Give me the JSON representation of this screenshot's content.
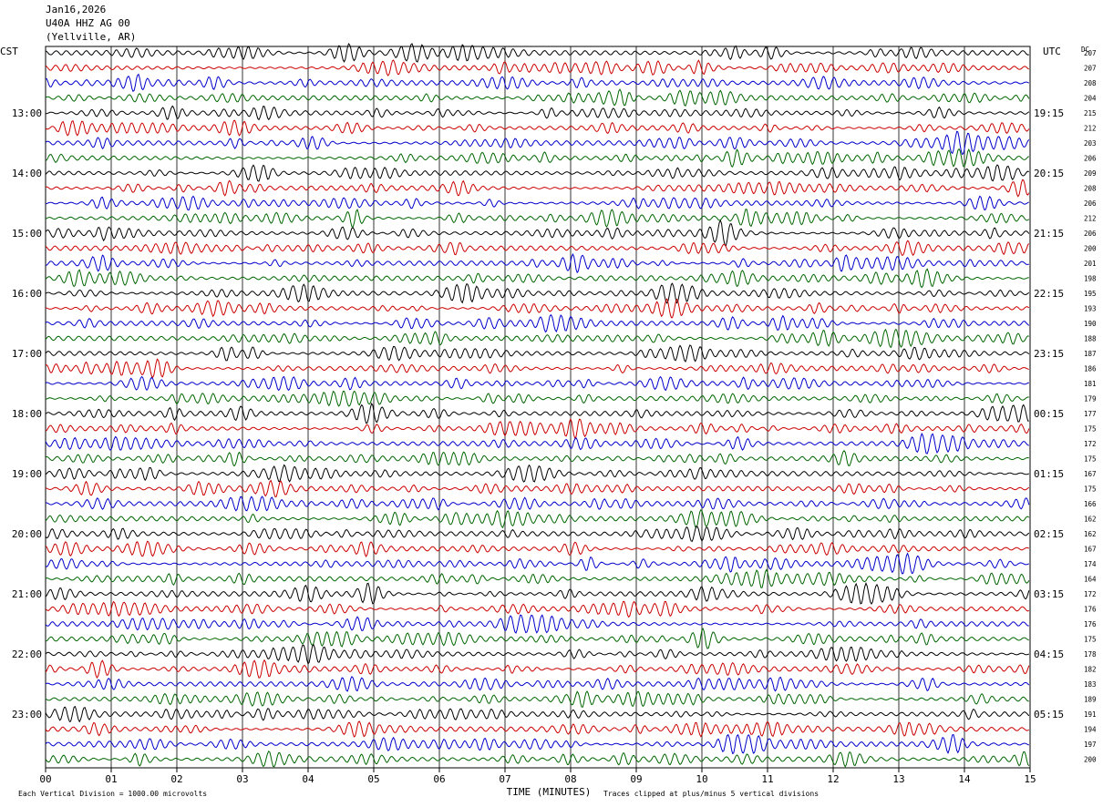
{
  "header": {
    "date": "Jan16,2026",
    "station": "U40A HHZ AG 00",
    "location": "(Yellville, AR)"
  },
  "left_timezone": "CST",
  "right_timezone": "UTC",
  "dc_label": "DC",
  "footer": {
    "scale_note": "Each Vertical Division = 1000.00 microvolts",
    "xlabel": "TIME (MINUTES)",
    "clip_note": "Traces clipped at plus/minus 5 vertical divisions"
  },
  "colors": {
    "trace_cycle": [
      "#000000",
      "#cc0000",
      "#0000cc",
      "#006600"
    ],
    "grid": "#000000"
  },
  "chart_data": {
    "type": "line",
    "title": "",
    "xlabel": "TIME (MINUTES)",
    "xlim": [
      0,
      15
    ],
    "x_ticks": [
      "00",
      "01",
      "02",
      "03",
      "04",
      "05",
      "06",
      "07",
      "08",
      "09",
      "10",
      "11",
      "12",
      "13",
      "14",
      "15"
    ],
    "traces_per_hour": 4,
    "minutes_per_trace": 15,
    "left_hour_labels": [
      "13:00",
      "14:00",
      "15:00",
      "16:00",
      "17:00",
      "18:00",
      "19:00",
      "20:00",
      "21:00",
      "22:00",
      "23:00"
    ],
    "right_hour_labels": [
      "19:15",
      "20:15",
      "21:15",
      "22:15",
      "23:15",
      "00:15",
      "01:15",
      "02:15",
      "03:15",
      "04:15",
      "05:15"
    ],
    "dc_offsets": [
      207,
      207,
      208,
      204,
      215,
      212,
      203,
      206,
      209,
      208,
      206,
      212,
      206,
      200,
      201,
      198,
      195,
      193,
      190,
      188,
      187,
      186,
      181,
      179,
      177,
      175,
      172,
      175,
      167,
      175,
      166,
      162,
      162,
      167,
      174,
      164,
      172,
      176,
      176,
      175,
      178,
      182,
      183,
      189,
      191,
      194,
      197,
      200
    ]
  }
}
